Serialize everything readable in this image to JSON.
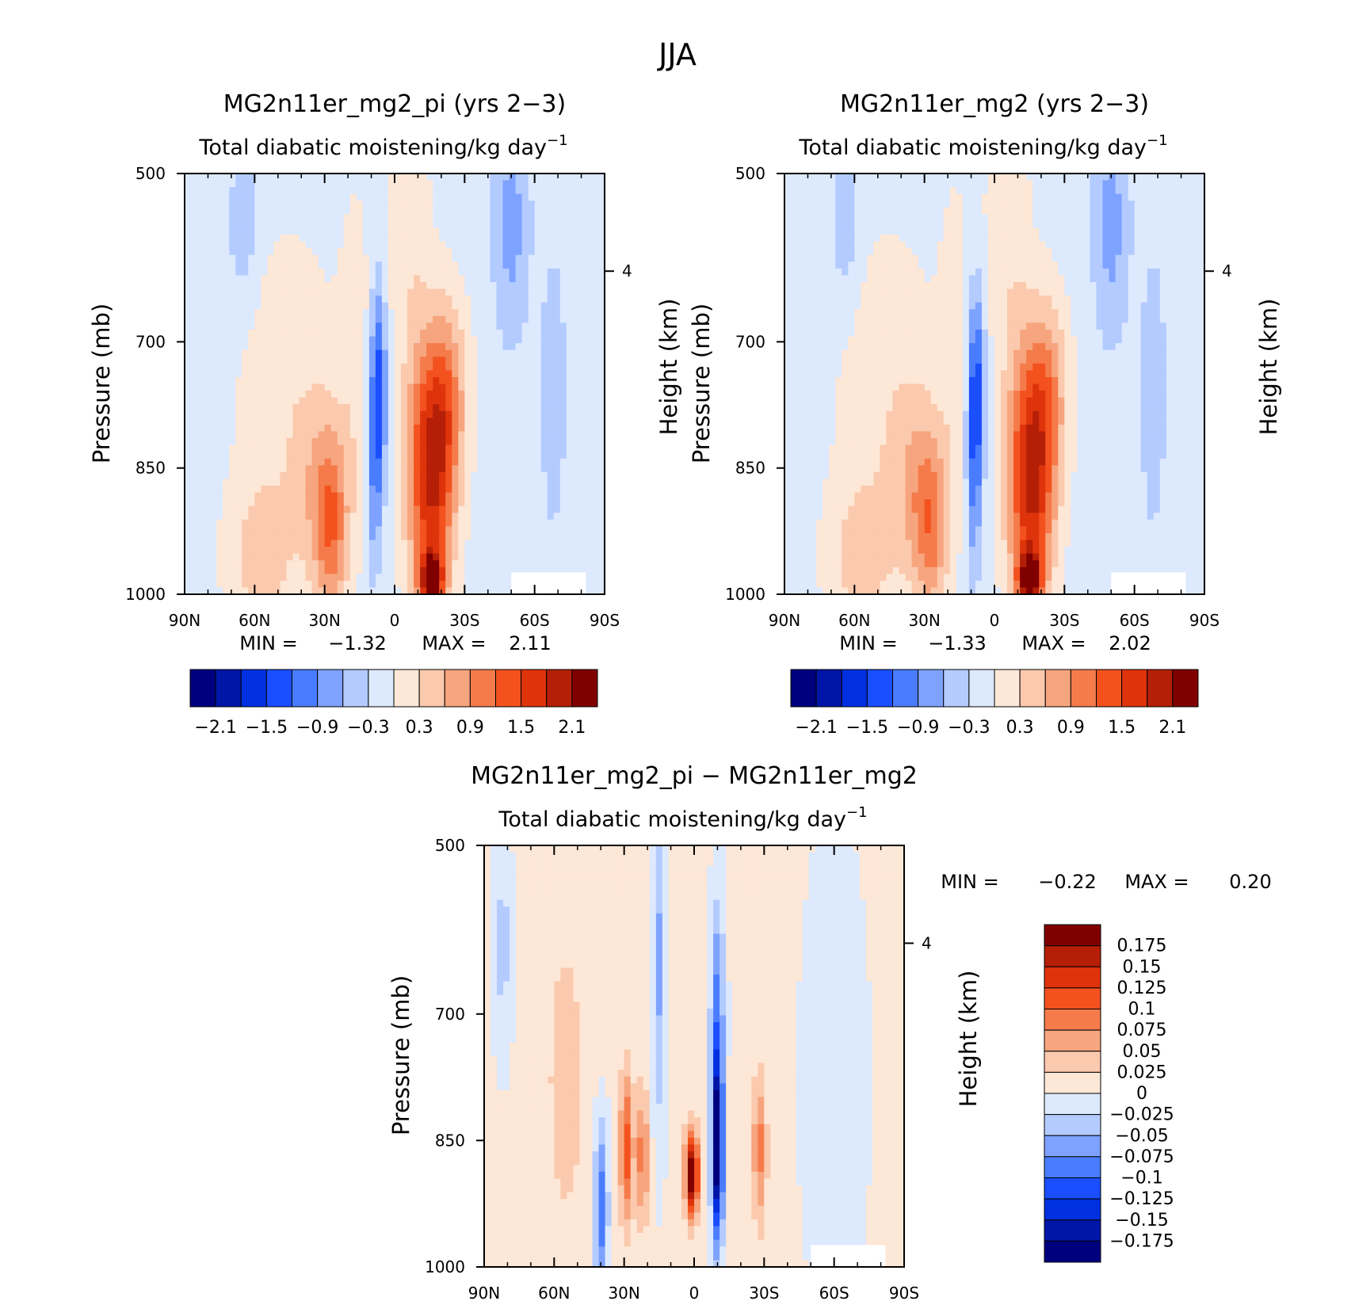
{
  "figure": {
    "title": "JJA"
  },
  "chart_data": [
    {
      "type": "heatmap",
      "title": "MG2n11er_mg2_pi (yrs 2−3)",
      "subtitle": "Total diabatic moistening/kg day",
      "subtitle_exponent": "−1",
      "xlabel": "",
      "ylabel": "Pressure (mb)",
      "y2label": "Height (km)",
      "xticks": [
        "90N",
        "60N",
        "30N",
        "0",
        "30S",
        "60S",
        "90S"
      ],
      "yticks": [
        "500",
        "700",
        "850",
        "1000"
      ],
      "y2ticks": [
        "4"
      ],
      "xlim": [
        90,
        -90
      ],
      "ylim": [
        1000,
        500
      ],
      "min_label": "MIN =",
      "min_value": "−1.32",
      "max_label": "MAX =",
      "max_value": "2.11",
      "colorbar_labels": [
        "−2.1",
        "−1.5",
        "−0.9",
        "−0.3",
        "0.3",
        "0.9",
        "1.5",
        "2.1"
      ],
      "colorbar_levels": [
        -2.1,
        -1.8,
        -1.5,
        -1.2,
        -0.9,
        -0.6,
        -0.3,
        0,
        0.3,
        0.6,
        0.9,
        1.2,
        1.5,
        1.8,
        2.1
      ],
      "features": [
        {
          "lat": -17,
          "p": 870,
          "value": 1.6,
          "wlat": 9,
          "wp": 130
        },
        {
          "lat": -16,
          "p": 985,
          "value": 2.11,
          "wlat": 5,
          "wp": 35
        },
        {
          "lat": -22,
          "p": 760,
          "value": 1.0,
          "wlat": 9,
          "wp": 110
        },
        {
          "lat": -10,
          "p": 830,
          "value": 0.6,
          "wlat": 8,
          "wp": 180
        },
        {
          "lat": 7,
          "p": 760,
          "value": -1.32,
          "wlat": 3.5,
          "wp": 120
        },
        {
          "lat": 9,
          "p": 880,
          "value": -0.55,
          "wlat": 3,
          "wp": 110
        },
        {
          "lat": 27,
          "p": 930,
          "value": 0.85,
          "wlat": 7,
          "wp": 100
        },
        {
          "lat": 30,
          "p": 880,
          "value": 0.6,
          "wlat": 11,
          "wp": 110
        },
        {
          "lat": 17,
          "p": 700,
          "value": 0.3,
          "wlat": 6,
          "wp": 170
        },
        {
          "lat": 58,
          "p": 960,
          "value": 0.5,
          "wlat": 14,
          "wp": 90
        },
        {
          "lat": 45,
          "p": 780,
          "value": 0.35,
          "wlat": 22,
          "wp": 200
        },
        {
          "lat": -5,
          "p": 560,
          "value": 0.3,
          "wlat": 10,
          "wp": 150
        },
        {
          "lat": 65,
          "p": 560,
          "value": -0.45,
          "wlat": 6,
          "wp": 90
        },
        {
          "lat": -50,
          "p": 560,
          "value": -0.6,
          "wlat": 8,
          "wp": 140
        },
        {
          "lat": -68,
          "p": 760,
          "value": -0.5,
          "wlat": 5,
          "wp": 150
        }
      ],
      "background": -0.12
    },
    {
      "type": "heatmap",
      "title": "MG2n11er_mg2 (yrs 2−3)",
      "subtitle": "Total diabatic moistening/kg day",
      "subtitle_exponent": "−1",
      "xlabel": "",
      "ylabel": "Pressure (mb)",
      "y2label": "Height (km)",
      "xticks": [
        "90N",
        "60N",
        "30N",
        "0",
        "30S",
        "60S",
        "90S"
      ],
      "yticks": [
        "500",
        "700",
        "850",
        "1000"
      ],
      "y2ticks": [
        "4"
      ],
      "xlim": [
        90,
        -90
      ],
      "ylim": [
        1000,
        500
      ],
      "min_label": "MIN =",
      "min_value": "−1.33",
      "max_label": "MAX =",
      "max_value": "2.02",
      "colorbar_labels": [
        "−2.1",
        "−1.5",
        "−0.9",
        "−0.3",
        "0.3",
        "0.9",
        "1.5",
        "2.1"
      ],
      "colorbar_levels": [
        -2.1,
        -1.8,
        -1.5,
        -1.2,
        -0.9,
        -0.6,
        -0.3,
        0,
        0.3,
        0.6,
        0.9,
        1.2,
        1.5,
        1.8,
        2.1
      ],
      "features": [
        {
          "lat": -17,
          "p": 880,
          "value": 1.6,
          "wlat": 9,
          "wp": 130
        },
        {
          "lat": -15,
          "p": 985,
          "value": 2.02,
          "wlat": 5,
          "wp": 35
        },
        {
          "lat": -22,
          "p": 760,
          "value": 1.0,
          "wlat": 9,
          "wp": 110
        },
        {
          "lat": -10,
          "p": 830,
          "value": 0.6,
          "wlat": 8,
          "wp": 180
        },
        {
          "lat": 8,
          "p": 760,
          "value": -1.33,
          "wlat": 3.5,
          "wp": 120
        },
        {
          "lat": 9,
          "p": 890,
          "value": -0.55,
          "wlat": 3,
          "wp": 110
        },
        {
          "lat": 27,
          "p": 930,
          "value": 0.8,
          "wlat": 7,
          "wp": 100
        },
        {
          "lat": 32,
          "p": 880,
          "value": 0.6,
          "wlat": 11,
          "wp": 110
        },
        {
          "lat": 17,
          "p": 690,
          "value": 0.3,
          "wlat": 6,
          "wp": 170
        },
        {
          "lat": 58,
          "p": 960,
          "value": 0.5,
          "wlat": 14,
          "wp": 90
        },
        {
          "lat": 45,
          "p": 780,
          "value": 0.35,
          "wlat": 22,
          "wp": 200
        },
        {
          "lat": -5,
          "p": 560,
          "value": 0.3,
          "wlat": 10,
          "wp": 150
        },
        {
          "lat": 64,
          "p": 560,
          "value": -0.45,
          "wlat": 6,
          "wp": 90
        },
        {
          "lat": -50,
          "p": 560,
          "value": -0.6,
          "wlat": 8,
          "wp": 140
        },
        {
          "lat": -68,
          "p": 760,
          "value": -0.5,
          "wlat": 5,
          "wp": 150
        }
      ],
      "background": -0.12
    },
    {
      "type": "heatmap",
      "title": "MG2n11er_mg2_pi − MG2n11er_mg2",
      "subtitle": "Total diabatic moistening/kg day",
      "subtitle_exponent": "−1",
      "xlabel": "",
      "ylabel": "Pressure (mb)",
      "y2label": "Height (km)",
      "xticks": [
        "90N",
        "60N",
        "30N",
        "0",
        "30S",
        "60S",
        "90S"
      ],
      "yticks": [
        "500",
        "700",
        "850",
        "1000"
      ],
      "y2ticks": [
        "4"
      ],
      "xlim": [
        90,
        -90
      ],
      "ylim": [
        1000,
        500
      ],
      "min_label": "MIN =",
      "min_value": "−0.22",
      "max_label": "MAX =",
      "max_value": "0.20",
      "colorbar_labels": [
        "0.175",
        "0.15",
        "0.125",
        "0.1",
        "0.075",
        "0.05",
        "0.025",
        "0",
        "−0.025",
        "−0.05",
        "−0.075",
        "−0.1",
        "−0.125",
        "−0.15",
        "−0.175"
      ],
      "colorbar_levels": [
        -0.175,
        -0.15,
        -0.125,
        -0.1,
        -0.075,
        -0.05,
        -0.025,
        0,
        0.025,
        0.05,
        0.075,
        0.1,
        0.125,
        0.15,
        0.175
      ],
      "features": [
        {
          "lat": 1,
          "p": 890,
          "value": 0.2,
          "wlat": 3,
          "wp": 50
        },
        {
          "lat": -10,
          "p": 860,
          "value": -0.22,
          "wlat": 2.5,
          "wp": 110
        },
        {
          "lat": -10,
          "p": 680,
          "value": -0.08,
          "wlat": 3,
          "wp": 120
        },
        {
          "lat": 29,
          "p": 860,
          "value": 0.11,
          "wlat": 3,
          "wp": 90
        },
        {
          "lat": 22,
          "p": 870,
          "value": 0.09,
          "wlat": 2.5,
          "wp": 80
        },
        {
          "lat": 40,
          "p": 930,
          "value": -0.1,
          "wlat": 3,
          "wp": 100
        },
        {
          "lat": -28,
          "p": 860,
          "value": 0.08,
          "wlat": 3,
          "wp": 90
        },
        {
          "lat": 15,
          "p": 640,
          "value": -0.06,
          "wlat": 3,
          "wp": 200
        },
        {
          "lat": 55,
          "p": 780,
          "value": 0.03,
          "wlat": 10,
          "wp": 220
        },
        {
          "lat": -60,
          "p": 780,
          "value": -0.03,
          "wlat": 12,
          "wp": 250
        },
        {
          "lat": 82,
          "p": 620,
          "value": -0.04,
          "wlat": 4,
          "wp": 120
        }
      ],
      "background": 0.005
    }
  ]
}
